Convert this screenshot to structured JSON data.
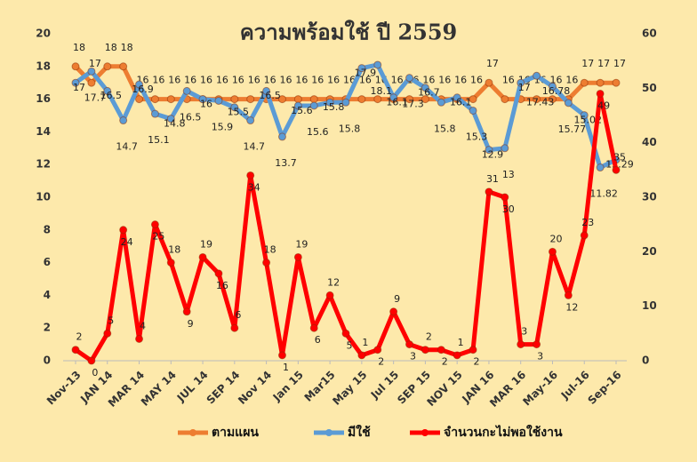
{
  "chart_data": {
    "type": "line",
    "title": "ความพร้อมใช้ ปี 2559",
    "categories": [
      "Nov-13",
      null,
      "JAN 14",
      null,
      "MAR 14",
      null,
      "MAY 14",
      null,
      "JUL 14",
      null,
      "SEP 14",
      null,
      "Nov 14",
      null,
      "Jan 15",
      null,
      "Mar15",
      null,
      "May 15",
      null,
      "Jul 15",
      null,
      "SEP 15",
      null,
      "NOV 15",
      null,
      "JAN 16",
      null,
      "MAR 16",
      null,
      "May-16",
      null,
      "Jul-16",
      null,
      "Sep-16"
    ],
    "series": [
      {
        "name": "ตามแผน",
        "color": "#ed7d31",
        "axis": "y",
        "values": [
          18,
          17,
          18,
          18,
          16,
          16,
          16,
          16,
          16,
          16,
          16,
          16,
          16,
          16,
          16,
          16,
          16,
          16,
          16,
          16,
          16,
          16,
          16,
          16,
          16,
          16,
          17,
          16,
          16,
          16,
          16,
          16,
          17,
          17,
          17
        ]
      },
      {
        "name": "มีใช้",
        "color": "#5b9bd5",
        "axis": "y",
        "values": [
          17,
          17.7,
          16.5,
          14.7,
          16.9,
          15.1,
          14.8,
          16.5,
          16,
          15.9,
          15.5,
          14.7,
          16.5,
          13.7,
          15.6,
          15.6,
          15.8,
          15.8,
          17.9,
          18.1,
          16.1,
          17.3,
          16.7,
          15.8,
          16.1,
          15.3,
          12.9,
          13,
          17,
          17.43,
          16.78,
          15.77,
          15.02,
          11.82,
          12.29
        ]
      },
      {
        "name": "จำนวนกะไม่พอใช้งาน",
        "color": "#ff0000",
        "axis": "y2",
        "values": [
          2,
          0,
          5,
          24,
          4,
          25,
          18,
          9,
          19,
          16,
          6,
          34,
          18,
          1,
          19,
          6,
          12,
          5,
          1,
          2,
          9,
          3,
          2,
          2,
          1,
          2,
          31,
          30,
          3,
          3,
          20,
          12,
          23,
          49,
          35
        ]
      }
    ],
    "ylim": [
      0,
      20
    ],
    "yticks": [
      0,
      2,
      4,
      6,
      8,
      10,
      12,
      14,
      16,
      18,
      20
    ],
    "y2lim": [
      0,
      60
    ],
    "y2ticks": [
      0,
      10,
      20,
      30,
      40,
      50,
      60
    ],
    "grid": false,
    "legend": "bottom"
  }
}
